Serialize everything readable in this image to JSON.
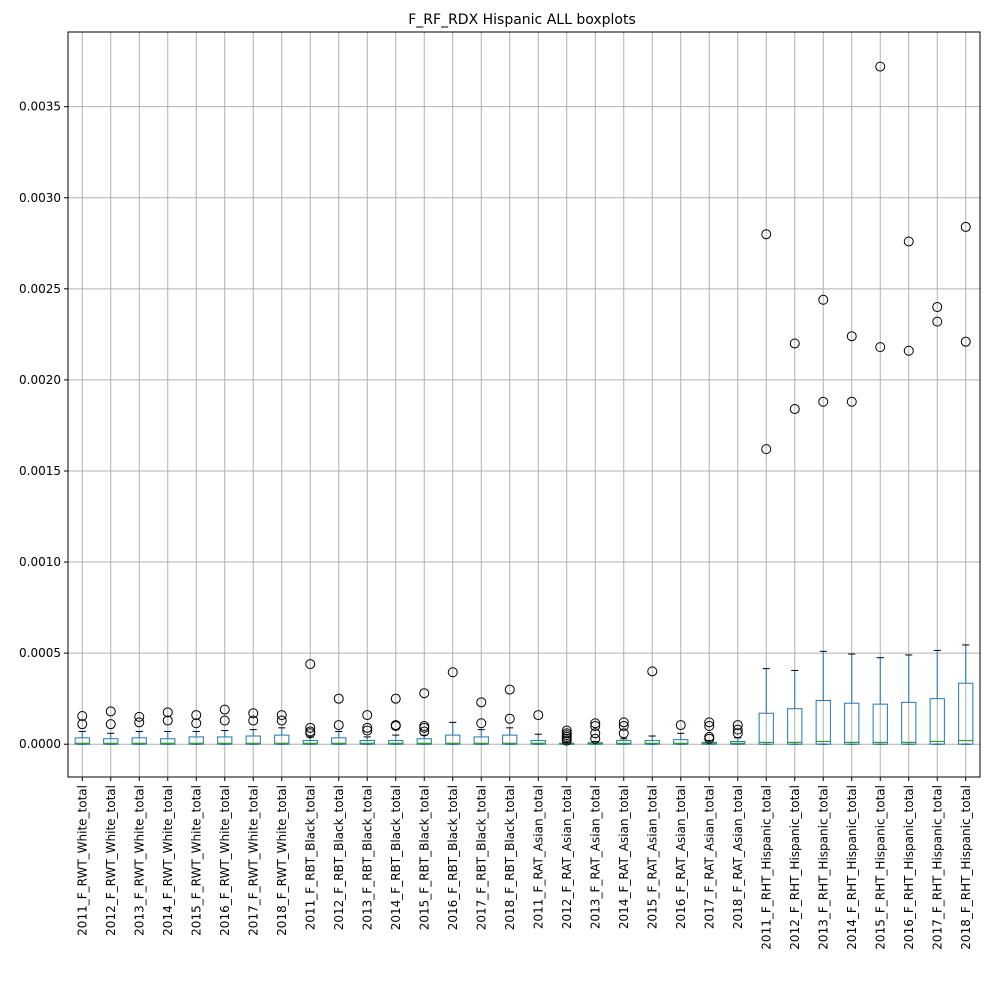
{
  "chart_data": {
    "type": "boxplot",
    "title": "F_RF_RDX Hispanic ALL boxplots",
    "xlabel": "",
    "ylabel": "",
    "ylim": [
      -0.00018,
      0.00391
    ],
    "grid": true,
    "legend": "none",
    "y_ticks": [
      0.0,
      0.0005,
      0.001,
      0.0015,
      0.002,
      0.0025,
      0.003,
      0.0035
    ],
    "y_tick_labels": [
      "0.0000",
      "0.0005",
      "0.0010",
      "0.0015",
      "0.0020",
      "0.0025",
      "0.0030",
      "0.0035"
    ],
    "colors": {
      "box": "#1f77b4",
      "median": "#2ca02c",
      "whisker": "#1f77b4",
      "cap": "#000000",
      "flier": "#000000",
      "grid": "#b0b0b0",
      "axes": "#000000"
    },
    "categories": [
      "2011_F_RWT_White_total",
      "2012_F_RWT_White_total",
      "2013_F_RWT_White_total",
      "2014_F_RWT_White_total",
      "2015_F_RWT_White_total",
      "2016_F_RWT_White_total",
      "2017_F_RWT_White_total",
      "2018_F_RWT_White_total",
      "2011_F_RBT_Black_total",
      "2012_F_RBT_Black_total",
      "2013_F_RBT_Black_total",
      "2014_F_RBT_Black_total",
      "2015_F_RBT_Black_total",
      "2016_F_RBT_Black_total",
      "2017_F_RBT_Black_total",
      "2018_F_RBT_Black_total",
      "2011_F_RAT_Asian_total",
      "2012_F_RAT_Asian_total",
      "2013_F_RAT_Asian_total",
      "2014_F_RAT_Asian_total",
      "2015_F_RAT_Asian_total",
      "2016_F_RAT_Asian_total",
      "2017_F_RAT_Asian_total",
      "2018_F_RAT_Asian_total",
      "2011_F_RHT_Hispanic_total",
      "2012_F_RHT_Hispanic_total",
      "2013_F_RHT_Hispanic_total",
      "2014_F_RHT_Hispanic_total",
      "2015_F_RHT_Hispanic_total",
      "2016_F_RHT_Hispanic_total",
      "2017_F_RHT_Hispanic_total",
      "2018_F_RHT_Hispanic_total"
    ],
    "boxes": [
      {
        "whislo": 0.0,
        "q1": 0.0,
        "med": 5e-06,
        "q3": 3.5e-05,
        "whishi": 7e-05,
        "fliers": [
          0.00011,
          0.000155
        ]
      },
      {
        "whislo": 0.0,
        "q1": 0.0,
        "med": 5e-06,
        "q3": 3e-05,
        "whishi": 6e-05,
        "fliers": [
          0.00011,
          0.00018
        ]
      },
      {
        "whislo": 0.0,
        "q1": 0.0,
        "med": 5e-06,
        "q3": 3.5e-05,
        "whishi": 7e-05,
        "fliers": [
          0.00012,
          0.00015
        ]
      },
      {
        "whislo": 0.0,
        "q1": 0.0,
        "med": 5e-06,
        "q3": 3e-05,
        "whishi": 7e-05,
        "fliers": [
          0.00013,
          0.000175
        ]
      },
      {
        "whislo": 0.0,
        "q1": 0.0,
        "med": 5e-06,
        "q3": 4e-05,
        "whishi": 7e-05,
        "fliers": [
          0.000115,
          0.00016
        ]
      },
      {
        "whislo": 0.0,
        "q1": 0.0,
        "med": 5e-06,
        "q3": 4e-05,
        "whishi": 7.5e-05,
        "fliers": [
          0.00013,
          0.00019
        ]
      },
      {
        "whislo": 0.0,
        "q1": 0.0,
        "med": 5e-06,
        "q3": 4.5e-05,
        "whishi": 8e-05,
        "fliers": [
          0.00013,
          0.00017
        ]
      },
      {
        "whislo": 0.0,
        "q1": 0.0,
        "med": 5e-06,
        "q3": 5e-05,
        "whishi": 9e-05,
        "fliers": [
          0.00013,
          0.00016
        ]
      },
      {
        "whislo": 0.0,
        "q1": 0.0,
        "med": 5e-06,
        "q3": 2e-05,
        "whishi": 4e-05,
        "fliers": [
          6e-05,
          7e-05,
          9e-05,
          0.00044
        ]
      },
      {
        "whislo": 0.0,
        "q1": 0.0,
        "med": 5e-06,
        "q3": 3.5e-05,
        "whishi": 7e-05,
        "fliers": [
          0.000105,
          0.00025
        ]
      },
      {
        "whislo": 0.0,
        "q1": 0.0,
        "med": 5e-06,
        "q3": 2e-05,
        "whishi": 4e-05,
        "fliers": [
          7.5e-05,
          9e-05,
          0.00016
        ]
      },
      {
        "whislo": 0.0,
        "q1": 0.0,
        "med": 5e-06,
        "q3": 2e-05,
        "whishi": 5e-05,
        "fliers": [
          0.0001,
          0.000105,
          0.00025
        ]
      },
      {
        "whislo": 0.0,
        "q1": 0.0,
        "med": 5e-06,
        "q3": 3e-05,
        "whishi": 5e-05,
        "fliers": [
          7e-05,
          9e-05,
          0.0001,
          0.00028
        ]
      },
      {
        "whislo": 0.0,
        "q1": 0.0,
        "med": 5e-06,
        "q3": 5e-05,
        "whishi": 0.00012,
        "fliers": [
          0.000395
        ]
      },
      {
        "whislo": 0.0,
        "q1": 0.0,
        "med": 5e-06,
        "q3": 4e-05,
        "whishi": 8e-05,
        "fliers": [
          0.000115,
          0.00023
        ]
      },
      {
        "whislo": 0.0,
        "q1": 0.0,
        "med": 5e-06,
        "q3": 5e-05,
        "whishi": 9e-05,
        "fliers": [
          0.00014,
          0.0003
        ]
      },
      {
        "whislo": 0.0,
        "q1": 0.0,
        "med": 5e-06,
        "q3": 2e-05,
        "whishi": 5.5e-05,
        "fliers": [
          0.00016
        ]
      },
      {
        "whislo": 0.0,
        "q1": 0.0,
        "med": 2e-06,
        "q3": 5e-06,
        "whishi": 1e-05,
        "fliers": [
          2e-05,
          3e-05,
          4e-05,
          5e-05,
          6e-05,
          7.5e-05
        ]
      },
      {
        "whislo": 0.0,
        "q1": 0.0,
        "med": 3e-06,
        "q3": 8e-06,
        "whishi": 1.5e-05,
        "fliers": [
          3e-05,
          6e-05,
          0.0001,
          0.000115
        ]
      },
      {
        "whislo": 0.0,
        "q1": 0.0,
        "med": 5e-06,
        "q3": 2e-05,
        "whishi": 3e-05,
        "fliers": [
          6e-05,
          0.0001,
          0.00012
        ]
      },
      {
        "whislo": 0.0,
        "q1": 0.0,
        "med": 5e-06,
        "q3": 2e-05,
        "whishi": 4.5e-05,
        "fliers": [
          0.0004
        ]
      },
      {
        "whislo": 0.0,
        "q1": 0.0,
        "med": 5e-06,
        "q3": 2.5e-05,
        "whishi": 6e-05,
        "fliers": [
          0.000105
        ]
      },
      {
        "whislo": 0.0,
        "q1": 0.0,
        "med": 3e-06,
        "q3": 1e-05,
        "whishi": 2e-05,
        "fliers": [
          3e-05,
          4e-05,
          0.0001,
          0.00012
        ]
      },
      {
        "whislo": 0.0,
        "q1": 0.0,
        "med": 5e-06,
        "q3": 1.5e-05,
        "whishi": 3.5e-05,
        "fliers": [
          6e-05,
          8e-05,
          0.000105
        ]
      },
      {
        "whislo": 0.0,
        "q1": 0.0,
        "med": 1e-05,
        "q3": 0.00017,
        "whishi": 0.000415,
        "fliers": [
          0.00162,
          0.0028
        ]
      },
      {
        "whislo": 0.0,
        "q1": 0.0,
        "med": 1e-05,
        "q3": 0.000195,
        "whishi": 0.000405,
        "fliers": [
          0.00184,
          0.0022
        ]
      },
      {
        "whislo": 0.0,
        "q1": 0.0,
        "med": 1.5e-05,
        "q3": 0.00024,
        "whishi": 0.00051,
        "fliers": [
          0.00188,
          0.00244
        ]
      },
      {
        "whislo": 0.0,
        "q1": 0.0,
        "med": 1e-05,
        "q3": 0.000225,
        "whishi": 0.000495,
        "fliers": [
          0.00188,
          0.00224
        ]
      },
      {
        "whislo": 0.0,
        "q1": 0.0,
        "med": 1e-05,
        "q3": 0.00022,
        "whishi": 0.000475,
        "fliers": [
          0.00218,
          0.00372
        ]
      },
      {
        "whislo": 0.0,
        "q1": 0.0,
        "med": 1e-05,
        "q3": 0.00023,
        "whishi": 0.00049,
        "fliers": [
          0.00216,
          0.00276
        ]
      },
      {
        "whislo": 0.0,
        "q1": 0.0,
        "med": 1.5e-05,
        "q3": 0.00025,
        "whishi": 0.000515,
        "fliers": [
          0.00232,
          0.0024
        ]
      },
      {
        "whislo": 0.0,
        "q1": 0.0,
        "med": 2e-05,
        "q3": 0.000335,
        "whishi": 0.000545,
        "fliers": [
          0.00221,
          0.00284
        ]
      }
    ]
  }
}
